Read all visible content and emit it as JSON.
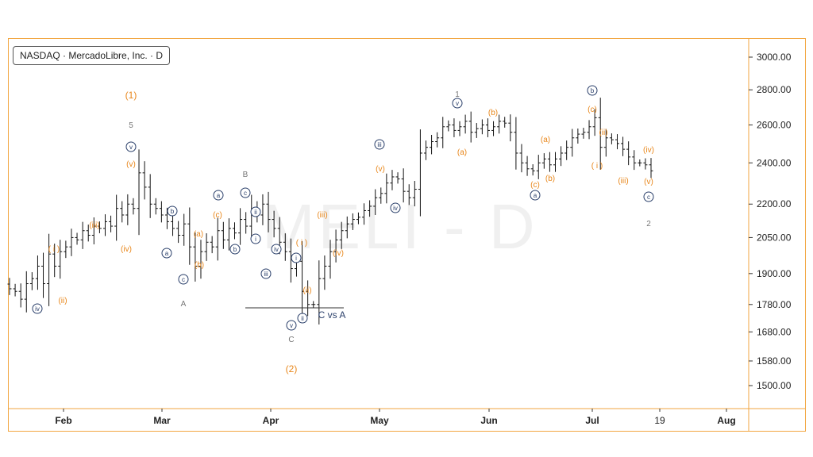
{
  "header": {
    "symbol_label": "NASDAQ · MercadoLibre, Inc. · D"
  },
  "watermark": "MELI - D",
  "colors": {
    "frame": "#f2a640",
    "orange": "#e8861a",
    "navy": "#2a3f6a",
    "gray": "#777777",
    "bar": "#111111"
  },
  "chart_data": {
    "type": "ohlc",
    "y_axis": {
      "ticks": [
        "3000.00",
        "2800.00",
        "2600.00",
        "2400.00",
        "2200.00",
        "2050.00",
        "1900.00",
        "1780.00",
        "1680.00",
        "1580.00",
        "1500.00"
      ],
      "range": [
        1400,
        3100
      ],
      "scale": "log"
    },
    "x_axis": {
      "ticks": [
        "Feb",
        "Mar",
        "Apr",
        "May",
        "Jun",
        "Jul",
        "19",
        "Aug"
      ]
    },
    "closes": [
      1840,
      1830,
      1800,
      1860,
      1880,
      1930,
      1860,
      1980,
      1930,
      1990,
      2010,
      2050,
      2040,
      2080,
      2060,
      2100,
      2090,
      2120,
      2100,
      2180,
      2150,
      2200,
      2180,
      2350,
      2280,
      2200,
      2180,
      2150,
      2120,
      2090,
      2060,
      2110,
      2010,
      1930,
      1990,
      2030,
      2010,
      2080,
      2040,
      2090,
      2070,
      2130,
      2100,
      2180,
      2150,
      2200,
      2130,
      2090,
      2030,
      1990,
      1920,
      1950,
      1830,
      1780,
      1780,
      1880,
      1930,
      1990,
      2040,
      2080,
      2110,
      2130,
      2140,
      2170,
      2190,
      2230,
      2250,
      2300,
      2330,
      2320,
      2260,
      2230,
      2270,
      2450,
      2480,
      2510,
      2530,
      2590,
      2600,
      2570,
      2590,
      2620,
      2560,
      2580,
      2600,
      2570,
      2590,
      2620,
      2610,
      2560,
      2450,
      2400,
      2370,
      2360,
      2400,
      2420,
      2390,
      2420,
      2450,
      2480,
      2530,
      2550,
      2560,
      2590,
      2640,
      2480,
      2530,
      2520,
      2500,
      2470,
      2430,
      2400,
      2400,
      2390,
      2360
    ],
    "wave_labels": [
      {
        "text": "(1)",
        "color": "orange"
      },
      {
        "text": "5",
        "color": "gray"
      },
      {
        "text": "v",
        "color": "navy"
      },
      {
        "text": "(v)",
        "color": "orange"
      },
      {
        "text": "(iv)",
        "color": "orange"
      },
      {
        "text": "(iii)",
        "color": "orange"
      },
      {
        "text": "( i )",
        "color": "orange"
      },
      {
        "text": "(ii)",
        "color": "orange"
      },
      {
        "text": "iv",
        "color": "navy"
      },
      {
        "text": "A",
        "color": "gray"
      },
      {
        "text": "b",
        "color": "navy"
      },
      {
        "text": "a",
        "color": "navy"
      },
      {
        "text": "c",
        "color": "navy"
      },
      {
        "text": "(a)",
        "color": "orange"
      },
      {
        "text": "(b)",
        "color": "orange"
      },
      {
        "text": "(c)",
        "color": "orange"
      },
      {
        "text": "a",
        "color": "navy"
      },
      {
        "text": "B",
        "color": "gray"
      },
      {
        "text": "c",
        "color": "navy"
      },
      {
        "text": "ii",
        "color": "navy"
      },
      {
        "text": "b",
        "color": "navy"
      },
      {
        "text": "i",
        "color": "navy"
      },
      {
        "text": "iv",
        "color": "navy"
      },
      {
        "text": "iii",
        "color": "navy"
      },
      {
        "text": "i",
        "color": "navy"
      },
      {
        "text": "( i )",
        "color": "orange"
      },
      {
        "text": "(ii)",
        "color": "orange"
      },
      {
        "text": "v",
        "color": "navy"
      },
      {
        "text": "ii",
        "color": "navy"
      },
      {
        "text": "C",
        "color": "gray"
      },
      {
        "text": "(2)",
        "color": "orange"
      },
      {
        "text": "C vs A",
        "color": "navy"
      },
      {
        "text": "(iii)",
        "color": "orange"
      },
      {
        "text": "(iv)",
        "color": "orange"
      },
      {
        "text": "(v)",
        "color": "orange"
      },
      {
        "text": "iii",
        "color": "navy"
      },
      {
        "text": "iv",
        "color": "navy"
      },
      {
        "text": "1",
        "color": "gray"
      },
      {
        "text": "v",
        "color": "navy"
      },
      {
        "text": "(a)",
        "color": "orange"
      },
      {
        "text": "(b)",
        "color": "orange"
      },
      {
        "text": "(a)",
        "color": "orange"
      },
      {
        "text": "(b)",
        "color": "orange"
      },
      {
        "text": "(c)",
        "color": "orange"
      },
      {
        "text": "a",
        "color": "navy"
      },
      {
        "text": "b",
        "color": "navy"
      },
      {
        "text": "(c)",
        "color": "orange"
      },
      {
        "text": "(ii)",
        "color": "orange"
      },
      {
        "text": "( i )",
        "color": "orange"
      },
      {
        "text": "(iii)",
        "color": "orange"
      },
      {
        "text": "(iv)",
        "color": "orange"
      },
      {
        "text": "(v)",
        "color": "orange"
      },
      {
        "text": "c",
        "color": "navy"
      },
      {
        "text": "2",
        "color": "gray"
      }
    ]
  }
}
